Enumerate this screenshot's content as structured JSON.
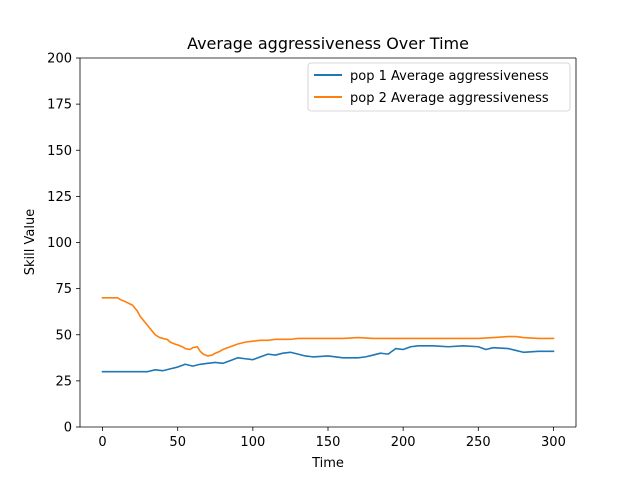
{
  "chart_data": {
    "type": "line",
    "title": "Average aggressiveness Over Time",
    "xlabel": "Time",
    "ylabel": "Skill Value",
    "xlim": [
      -15,
      315
    ],
    "ylim": [
      0,
      200
    ],
    "xticks": [
      0,
      50,
      100,
      150,
      200,
      250,
      300
    ],
    "yticks": [
      0,
      25,
      50,
      75,
      100,
      125,
      150,
      175,
      200
    ],
    "xtick_labels": [
      "0",
      "50",
      "100",
      "150",
      "200",
      "250",
      "300"
    ],
    "ytick_labels": [
      "0",
      "25",
      "50",
      "75",
      "100",
      "125",
      "150",
      "175",
      "200"
    ],
    "legend_position": "top-right",
    "grid": false,
    "series": [
      {
        "name": "pop 1 Average aggressiveness",
        "color": "#1f77b4",
        "x": [
          0,
          10,
          20,
          30,
          35,
          40,
          45,
          50,
          55,
          60,
          65,
          70,
          75,
          80,
          85,
          90,
          95,
          100,
          105,
          110,
          115,
          120,
          125,
          130,
          135,
          140,
          150,
          160,
          170,
          175,
          180,
          185,
          190,
          195,
          200,
          205,
          210,
          220,
          230,
          240,
          250,
          255,
          260,
          270,
          275,
          280,
          290,
          300
        ],
        "y": [
          30,
          30,
          30,
          30,
          31,
          30.5,
          31.5,
          32.5,
          34,
          33,
          34,
          34.5,
          35,
          34.5,
          36,
          37.5,
          37,
          36.5,
          38,
          39.5,
          39,
          40,
          40.5,
          39.5,
          38.5,
          38,
          38.5,
          37.5,
          37.5,
          38,
          39,
          40,
          39.5,
          42.5,
          42,
          43.5,
          44,
          44,
          43.5,
          44,
          43.5,
          42,
          43,
          42.5,
          41.5,
          40.5,
          41,
          41
        ]
      },
      {
        "name": "pop 2 Average aggressiveness",
        "color": "#ff7f0e",
        "x": [
          0,
          5,
          10,
          12,
          15,
          20,
          23,
          25,
          28,
          30,
          33,
          35,
          38,
          40,
          43,
          45,
          48,
          50,
          53,
          55,
          58,
          60,
          63,
          65,
          67,
          70,
          73,
          75,
          78,
          80,
          85,
          90,
          95,
          100,
          105,
          110,
          115,
          120,
          125,
          130,
          135,
          140,
          150,
          160,
          170,
          180,
          190,
          200,
          210,
          220,
          230,
          240,
          250,
          260,
          270,
          275,
          280,
          290,
          300
        ],
        "y": [
          70,
          70,
          70,
          69,
          68,
          66,
          63,
          60,
          57,
          55,
          52,
          50,
          48.5,
          48,
          47.5,
          46,
          45,
          44.5,
          43.5,
          42.5,
          42,
          43,
          43.5,
          41,
          39.5,
          38.5,
          39,
          40,
          41,
          42,
          43.5,
          45,
          46,
          46.5,
          47,
          47,
          47.5,
          47.5,
          47.5,
          48,
          48,
          48,
          48,
          48,
          48.5,
          48,
          48,
          48,
          48,
          48,
          48,
          48,
          48,
          48.5,
          49,
          49,
          48.5,
          48,
          48
        ]
      }
    ]
  }
}
